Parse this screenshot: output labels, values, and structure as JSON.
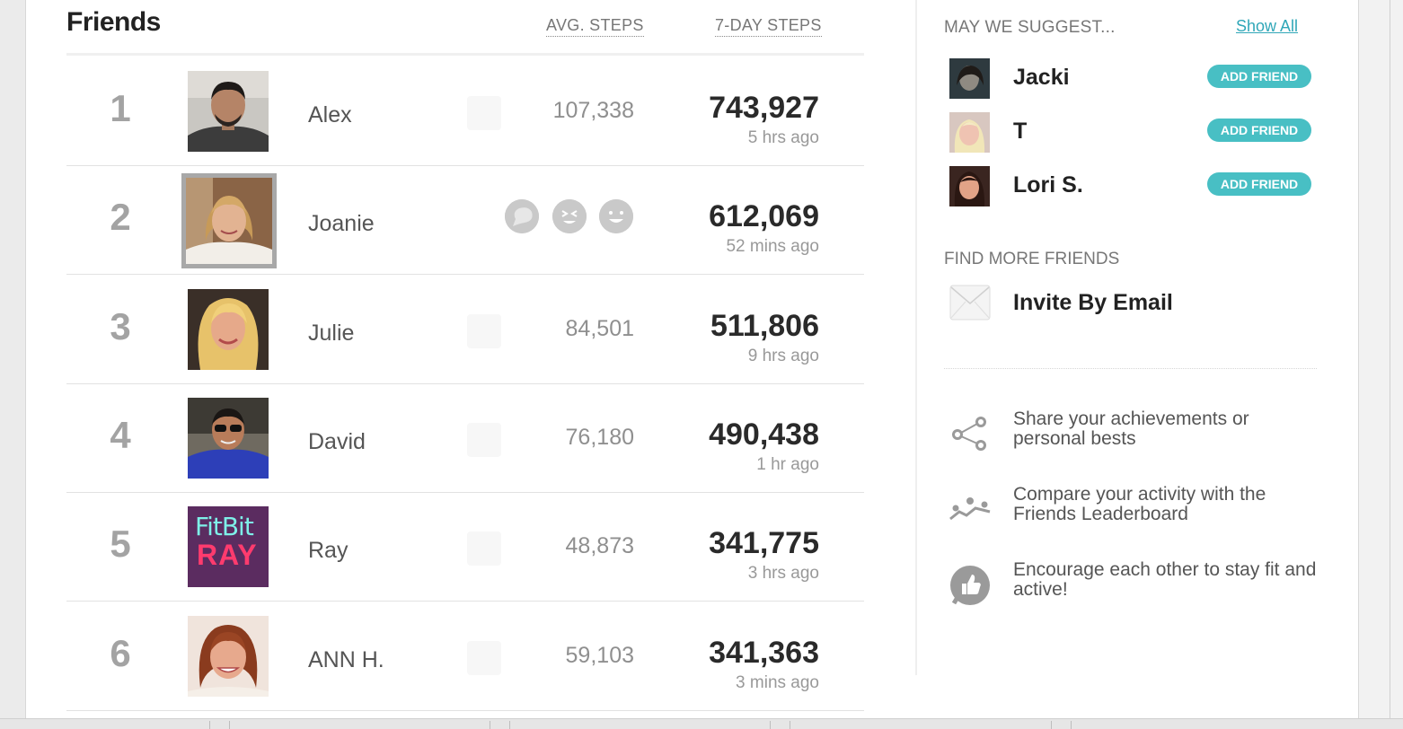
{
  "friends": {
    "title": "Friends",
    "col_avg": "AVG. STEPS",
    "col_7day": "7-DAY STEPS",
    "rows": [
      {
        "rank": "1",
        "name": "Alex",
        "avg": "107,338",
        "total": "743,927",
        "ago": "5 hrs ago"
      },
      {
        "rank": "2",
        "name": "Joanie",
        "avg": "",
        "total": "612,069",
        "ago": "52 mins ago"
      },
      {
        "rank": "3",
        "name": "Julie",
        "avg": "84,501",
        "total": "511,806",
        "ago": "9 hrs ago"
      },
      {
        "rank": "4",
        "name": "David",
        "avg": "76,180",
        "total": "490,438",
        "ago": "1 hr ago"
      },
      {
        "rank": "5",
        "name": "Ray",
        "avg": "48,873",
        "total": "341,775",
        "ago": "3 hrs ago"
      },
      {
        "rank": "6",
        "name": "ANN H.",
        "avg": "59,103",
        "total": "341,363",
        "ago": "3 mins ago"
      }
    ],
    "ray_avatar_text": {
      "line1": "FitBit",
      "line2": "RAY"
    }
  },
  "sidebar": {
    "suggest_title": "MAY WE SUGGEST...",
    "show_all": "Show All",
    "suggestions": [
      {
        "name": "Jacki",
        "button": "ADD FRIEND"
      },
      {
        "name": "T",
        "button": "ADD FRIEND"
      },
      {
        "name": "Lori S.",
        "button": "ADD FRIEND"
      }
    ],
    "find_title": "FIND MORE FRIENDS",
    "invite_label": "Invite By Email",
    "features": [
      {
        "icon": "share-people-icon",
        "text": "Share your achievements or personal bests"
      },
      {
        "icon": "leaderboard-icon",
        "text": "Compare your activity with the Friends Leaderboard"
      },
      {
        "icon": "thumbs-up-icon",
        "text": "Encourage each other to stay fit and active!"
      }
    ]
  },
  "colors": {
    "accent": "#48bfc4",
    "link": "#30a7b8"
  }
}
